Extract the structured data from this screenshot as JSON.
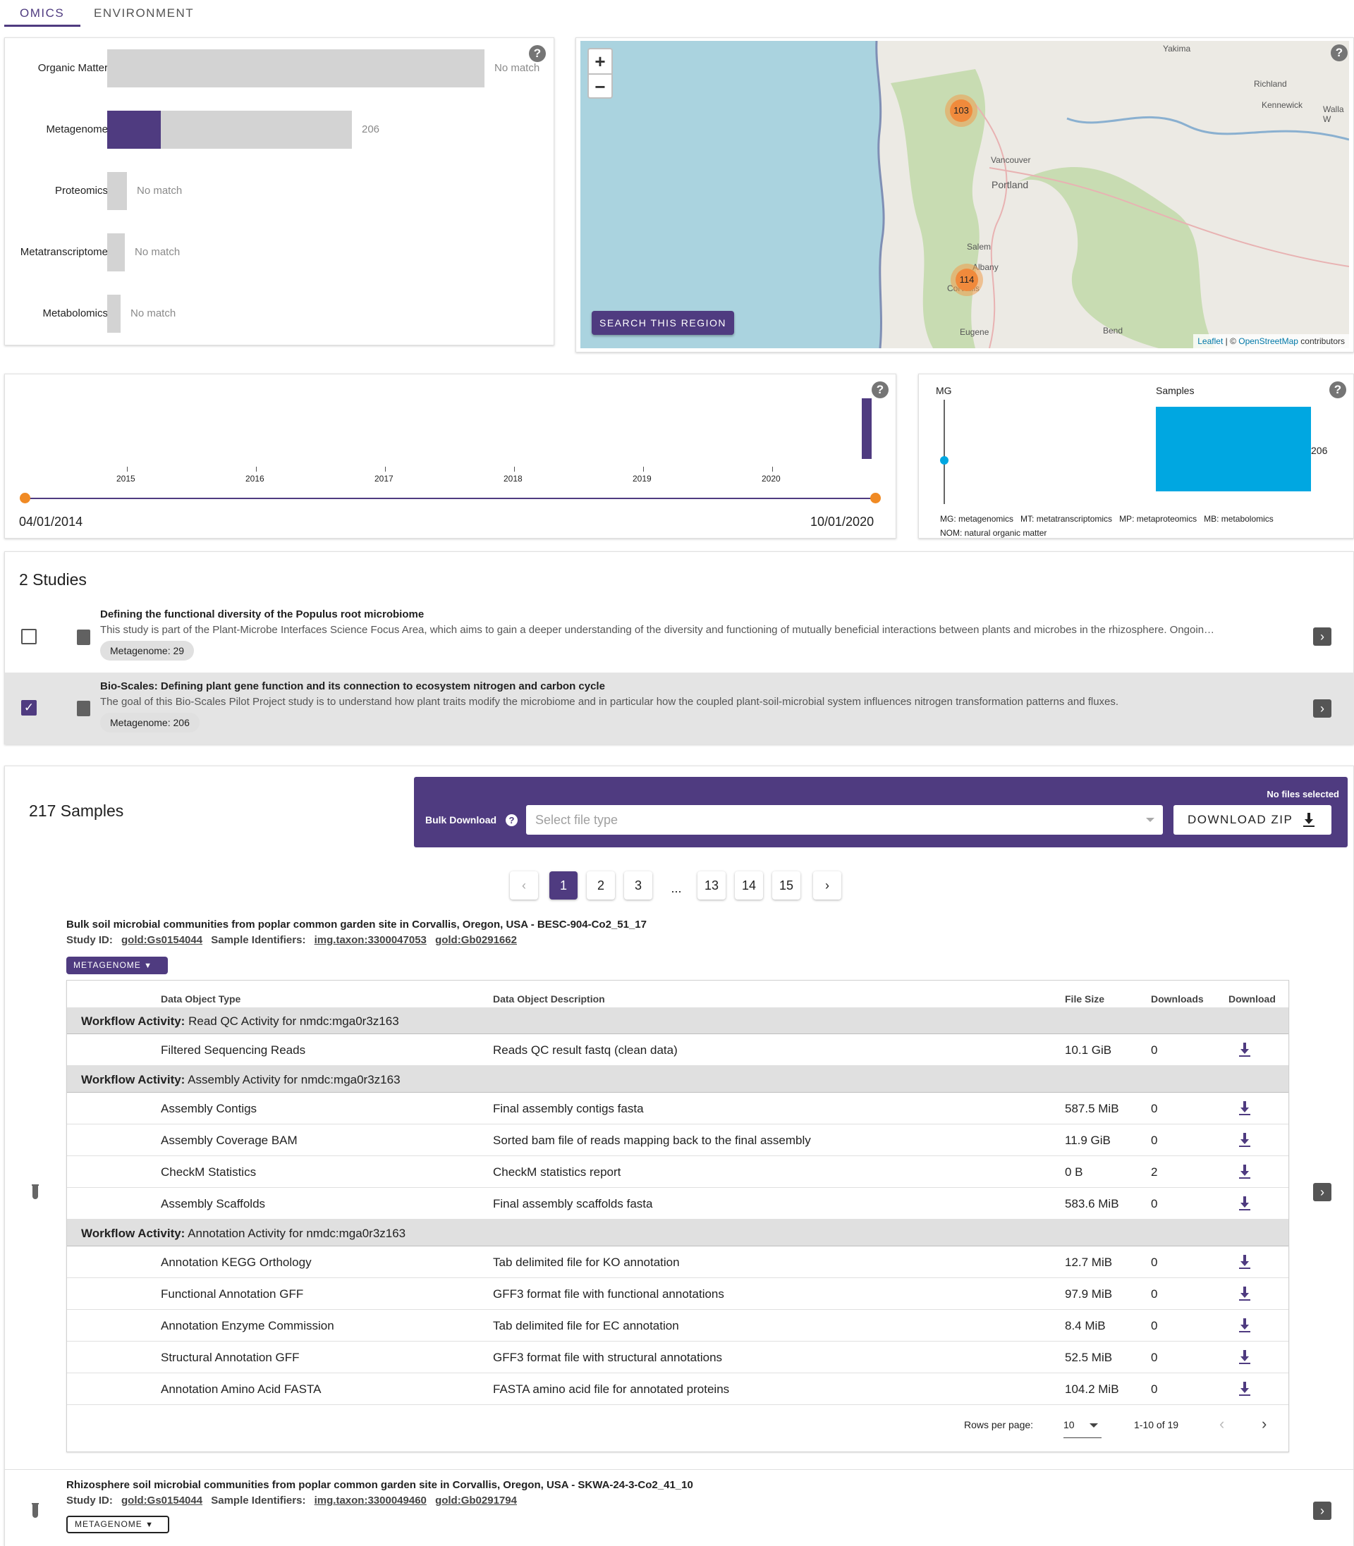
{
  "tabs": [
    {
      "label": "OMICS"
    },
    {
      "label": "ENVIRONMENT"
    }
  ],
  "omics_chart": {
    "bars": [
      {
        "label": "Organic Matter",
        "count": "No match",
        "fraction": 0
      },
      {
        "label": "Metagenome",
        "count": "206",
        "fraction": 0.44
      },
      {
        "label": "Proteomics",
        "count": "No match",
        "fraction": 0
      },
      {
        "label": "Metatranscriptome",
        "count": "No match",
        "fraction": 0
      },
      {
        "label": "Metabolomics",
        "count": "No match",
        "fraction": 0
      }
    ]
  },
  "map": {
    "zoom_in": "+",
    "zoom_out": "−",
    "search_region": "SEARCH THIS REGION",
    "clusters": [
      "103",
      "114"
    ],
    "cities": [
      "Yakima",
      "Richland",
      "Kennewick",
      "Walla W",
      "Vancouver",
      "Portland",
      "Salem",
      "Albany",
      "Corvallis",
      "Eugene",
      "Bend"
    ],
    "attribution_leaflet": "Leaflet",
    "attribution_sep": " | © ",
    "attribution_osm": "OpenStreetMap",
    "attribution_rest": " contributors"
  },
  "timeline": {
    "years": [
      "2015",
      "2016",
      "2017",
      "2018",
      "2019",
      "2020"
    ],
    "start_date": "04/01/2014",
    "end_date": "10/01/2020"
  },
  "samples_chart": {
    "axis_label": "MG",
    "bar_label": "Samples",
    "bar_value": "206",
    "legend_line1": "MG: metagenomics   MT: metatranscriptomics   MP: metaproteomics   MB: metabolomics",
    "legend_line2": "NOM: natural organic matter"
  },
  "studies": {
    "heading": "2 Studies",
    "items": [
      {
        "title": "Defining the functional diversity of the Populus root microbiome",
        "description": "This study is part of the Plant-Microbe Interfaces Science Focus Area, which aims to gain a deeper understanding of the diversity and functioning of mutually beneficial interactions between plants and microbes in the rhizosphere. Ongoin…",
        "chip": "Metagenome: 29",
        "checked": false
      },
      {
        "title": "Bio-Scales: Defining plant gene function and its connection to ecosystem nitrogen and carbon cycle",
        "description": "The goal of this Bio-Scales Pilot Project study is to understand how plant traits modify the microbiome and in particular how the coupled plant-soil-microbial system influences nitrogen transformation patterns and fluxes.",
        "chip": "Metagenome: 206",
        "checked": true
      }
    ]
  },
  "samples": {
    "heading": "217 Samples",
    "bulk_download_label": "Bulk Download",
    "no_files": "No files selected",
    "select_placeholder": "Select file type",
    "download_zip": "DOWNLOAD ZIP",
    "pagination": [
      "1",
      "2",
      "3",
      "...",
      "13",
      "14",
      "15"
    ],
    "sample1": {
      "title": "Bulk soil microbial communities from poplar common garden site in Corvallis, Oregon, USA - BESC-904-Co2_51_17",
      "study_id_label": "Study ID:",
      "study_id": "gold:Gs0154044",
      "sample_ids_label": "Sample Identifiers:",
      "sample_id1": "img.taxon:3300047053",
      "sample_id2": "gold:Gb0291662",
      "button": "METAGENOME"
    },
    "sample2": {
      "title": "Rhizosphere soil microbial communities from poplar common garden site in Corvallis, Oregon, USA - SKWA-24-3-Co2_41_10",
      "study_id_label": "Study ID:",
      "study_id": "gold:Gs0154044",
      "sample_ids_label": "Sample Identifiers:",
      "sample_id1": "img.taxon:3300049460",
      "sample_id2": "gold:Gb0291794",
      "button": "METAGENOME"
    },
    "table": {
      "headers": [
        "Data Object Type",
        "Data Object Description",
        "File Size",
        "Downloads",
        "Download"
      ],
      "workflow_prefix": "Workflow Activity:",
      "groups": [
        {
          "name": " Read QC Activity for nmdc:mga0r3z163",
          "rows": [
            [
              "Filtered Sequencing Reads",
              "Reads QC result fastq (clean data)",
              "10.1 GiB",
              "0"
            ]
          ]
        },
        {
          "name": " Assembly Activity for nmdc:mga0r3z163",
          "rows": [
            [
              "Assembly Contigs",
              "Final assembly contigs fasta",
              "587.5 MiB",
              "0"
            ],
            [
              "Assembly Coverage BAM",
              "Sorted bam file of reads mapping back to the final assembly",
              "11.9 GiB",
              "0"
            ],
            [
              "CheckM Statistics",
              "CheckM statistics report",
              "0 B",
              "2"
            ],
            [
              "Assembly Scaffolds",
              "Final assembly scaffolds fasta",
              "583.6 MiB",
              "0"
            ]
          ]
        },
        {
          "name": " Annotation Activity for nmdc:mga0r3z163",
          "rows": [
            [
              "Annotation KEGG Orthology",
              "Tab delimited file for KO annotation",
              "12.7 MiB",
              "0"
            ],
            [
              "Functional Annotation GFF",
              "GFF3 format file with functional annotations",
              "97.9 MiB",
              "0"
            ],
            [
              "Annotation Enzyme Commission",
              "Tab delimited file for EC annotation",
              "8.4 MiB",
              "0"
            ],
            [
              "Structural Annotation GFF",
              "GFF3 format file with structural annotations",
              "52.5 MiB",
              "0"
            ],
            [
              "Annotation Amino Acid FASTA",
              "FASTA amino acid file for annotated proteins",
              "104.2 MiB",
              "0"
            ]
          ]
        }
      ],
      "rows_per_page_label": "Rows per page:",
      "rows_per_page": "10",
      "range": "1-10 of 19"
    }
  },
  "colors": {
    "accent": "#4f3b80",
    "samples_bar": "#00a7e1",
    "timeline_dot": "#f08a24"
  }
}
